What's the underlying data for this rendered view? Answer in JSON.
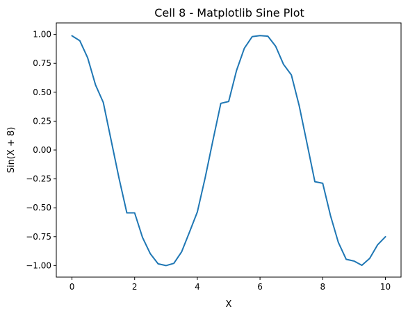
{
  "chart_data": {
    "type": "line",
    "title": "Cell 8 - Matplotlib Sine Plot",
    "xlabel": "X",
    "ylabel": "Sin(X + 8)",
    "xlim": [
      -0.5,
      10.5
    ],
    "ylim": [
      -1.1,
      1.1
    ],
    "x_ticks": [
      0,
      2,
      4,
      6,
      8,
      10
    ],
    "x_tick_labels": [
      "0",
      "2",
      "4",
      "6",
      "8",
      "10"
    ],
    "y_ticks": [
      1.0,
      0.75,
      0.5,
      0.25,
      0.0,
      -0.25,
      -0.5,
      -0.75,
      -1.0
    ],
    "y_tick_labels": [
      "1.00",
      "0.75",
      "0.50",
      "0.25",
      "0.00",
      "−0.25",
      "−0.50",
      "−0.75",
      "−1.00"
    ],
    "grid": false,
    "legend": "none",
    "series": [
      {
        "color": "#1f77b4",
        "x": [
          0,
          0.25,
          0.5,
          0.75,
          1,
          1.25,
          1.5,
          1.75,
          2,
          2.25,
          2.5,
          2.75,
          3,
          3.25,
          3.5,
          3.75,
          4,
          4.25,
          4.5,
          4.75,
          5,
          5.25,
          5.5,
          5.75,
          6,
          6.25,
          6.5,
          6.75,
          7,
          7.25,
          7.5,
          7.75,
          8,
          8.25,
          8.5,
          8.75,
          9,
          9.25,
          9.5,
          9.75,
          10
        ],
        "y": [
          0.989,
          0.946,
          0.798,
          0.564,
          0.412,
          0.084,
          -0.243,
          -0.544,
          -0.544,
          -0.756,
          -0.898,
          -0.985,
          -1.0,
          -0.981,
          -0.88,
          -0.711,
          -0.537,
          -0.239,
          0.088,
          0.404,
          0.42,
          0.688,
          0.88,
          0.981,
          0.99,
          0.985,
          0.898,
          0.741,
          0.65,
          0.382,
          0.058,
          -0.274,
          -0.288,
          -0.568,
          -0.8,
          -0.946,
          -0.961,
          -0.998,
          -0.938,
          -0.821,
          -0.751
        ]
      }
    ]
  }
}
